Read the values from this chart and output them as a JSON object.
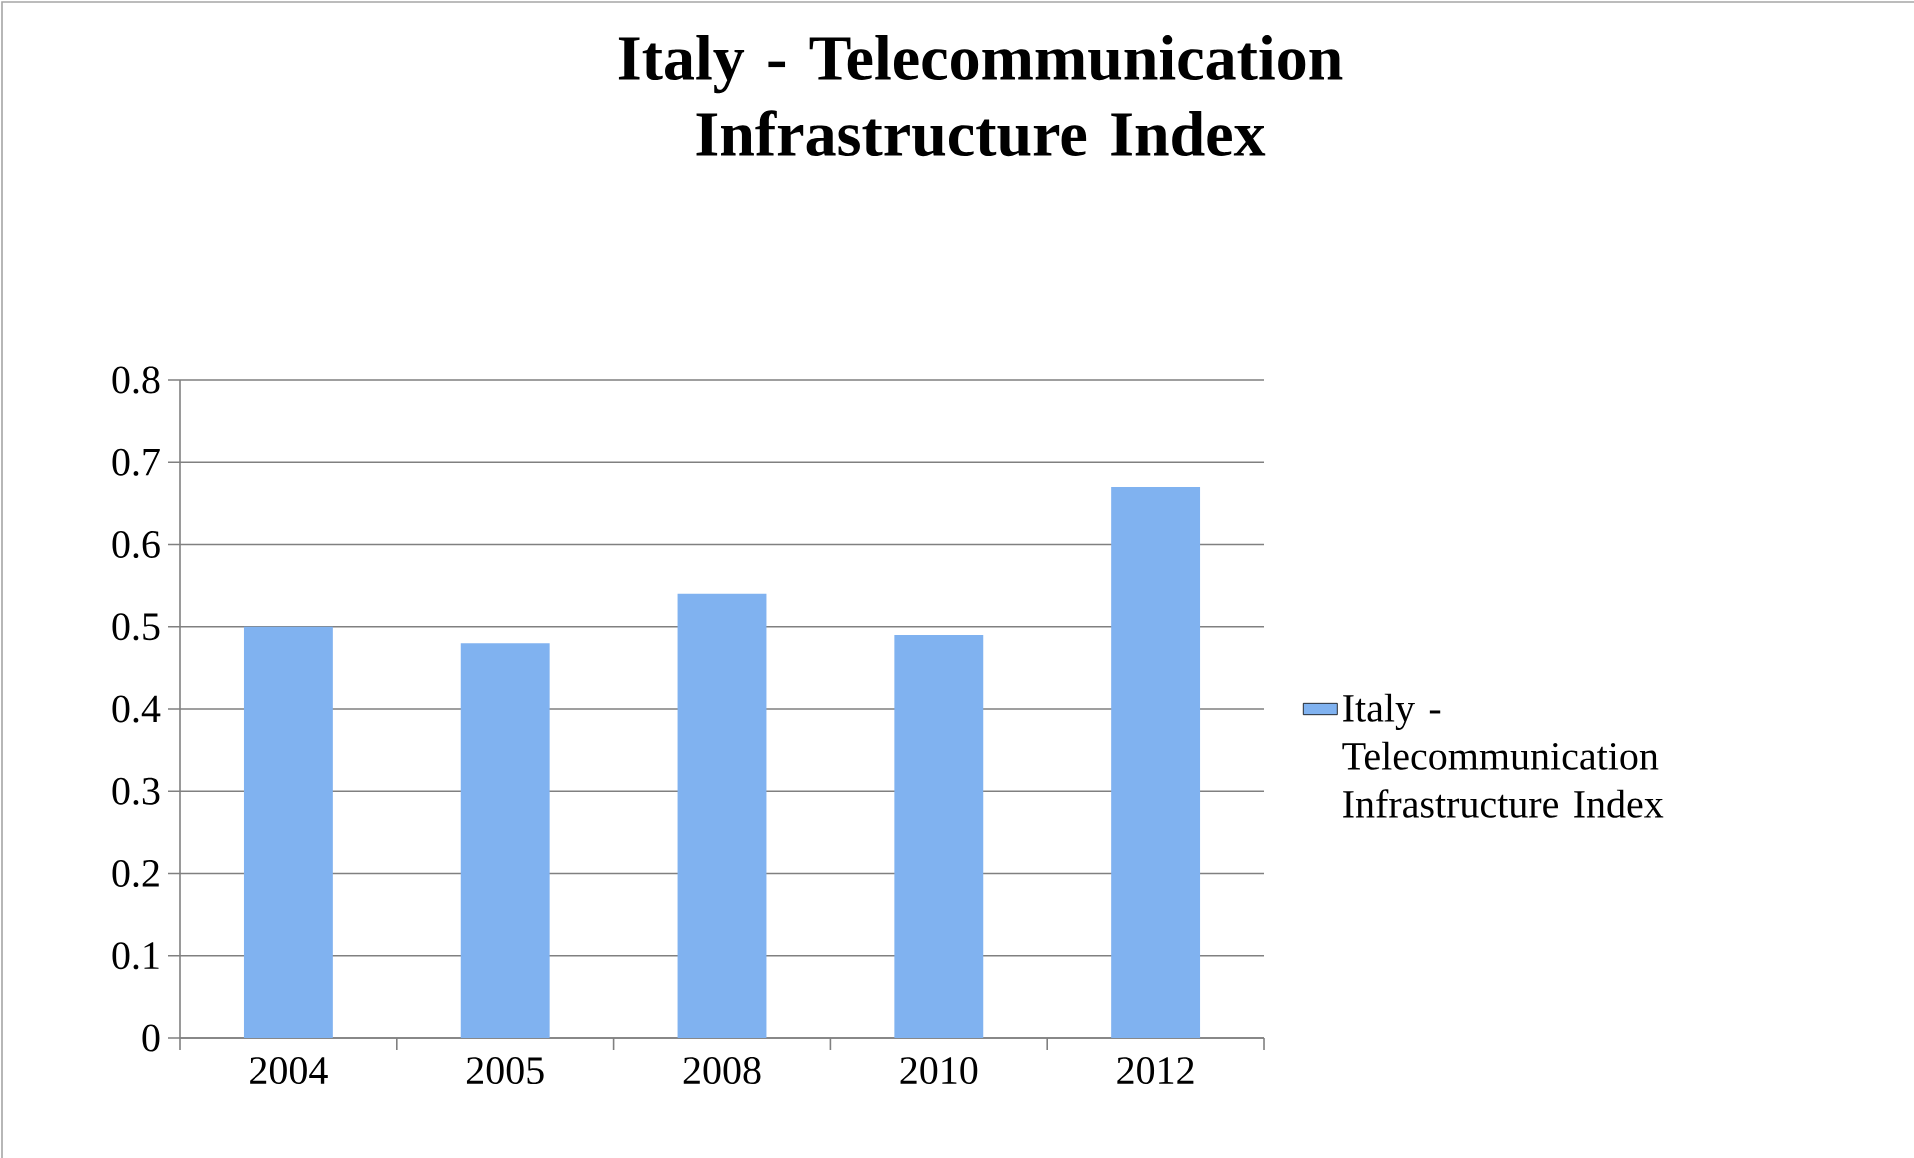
{
  "chart_data": {
    "type": "bar",
    "title": "Italy - Telecommunication Infrastructure Index",
    "categories": [
      "2004",
      "2005",
      "2008",
      "2010",
      "2012"
    ],
    "series": [
      {
        "name": "Italy - Telecommunication Infrastructure Index",
        "color": "#80b2f0",
        "values": [
          0.5,
          0.48,
          0.54,
          0.49,
          0.67
        ]
      }
    ],
    "ylim": [
      0,
      0.8
    ],
    "yticks": [
      0,
      0.1,
      0.2,
      0.3,
      0.4,
      0.5,
      0.6,
      0.7,
      0.8
    ],
    "grid": "y",
    "legend": "right"
  }
}
